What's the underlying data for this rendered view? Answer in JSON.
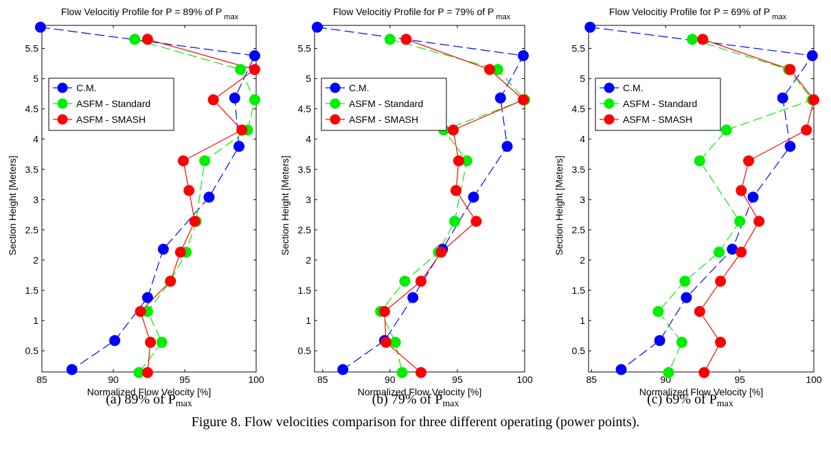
{
  "figure": {
    "caption": "Figure 8. Flow velocities comparison for three different operating (power points)."
  },
  "legend_entries": [
    "C.M.",
    "ASFM - Standard",
    "ASFM - SMASH"
  ],
  "series_colors": {
    "C.M.": "#0000ff",
    "ASFM - Standard": "#00ee00",
    "ASFM - SMASH": "#ff0000"
  },
  "chart_data": [
    {
      "type": "line",
      "title_prefix": "Flow Velocitiy Profile for P = 89% of P",
      "title_sub": "max",
      "subcaption_prefix": "(a) 89% of P",
      "subcaption_sub": "max",
      "xlabel": "Normalized Flow Velocity [%]",
      "ylabel": "Section Height [Meters]",
      "xlim": [
        85,
        100
      ],
      "ylim": [
        0.15,
        5.88
      ],
      "xticks": [
        "85",
        "90",
        "95",
        "100"
      ],
      "yticks": [
        "0.5",
        "1",
        "1.5",
        "2",
        "2.5",
        "3",
        "3.5",
        "4",
        "4.5",
        "5",
        "5.5"
      ],
      "legend_position": "upper-left",
      "series": [
        {
          "name": "C.M.",
          "points": [
            [
              84.9,
              5.85
            ],
            [
              99.9,
              5.38
            ],
            [
              98.5,
              4.68
            ],
            [
              98.8,
              3.88
            ],
            [
              96.7,
              3.04
            ],
            [
              93.5,
              2.18
            ],
            [
              92.4,
              1.38
            ],
            [
              90.1,
              0.67
            ],
            [
              87.1,
              0.19
            ]
          ]
        },
        {
          "name": "ASFM - Standard",
          "points": [
            [
              91.5,
              5.65
            ],
            [
              98.9,
              5.15
            ],
            [
              99.9,
              4.65
            ],
            [
              99.4,
              4.15
            ],
            [
              96.4,
              3.64
            ],
            [
              95.8,
              2.64
            ],
            [
              95.1,
              2.13
            ],
            [
              94.0,
              1.65
            ],
            [
              92.4,
              1.15
            ],
            [
              93.4,
              0.64
            ],
            [
              91.8,
              0.14
            ]
          ]
        },
        {
          "name": "ASFM - SMASH",
          "points": [
            [
              92.4,
              5.65
            ],
            [
              99.9,
              5.15
            ],
            [
              97.0,
              4.65
            ],
            [
              99.0,
              4.15
            ],
            [
              94.9,
              3.64
            ],
            [
              95.3,
              3.15
            ],
            [
              95.7,
              2.64
            ],
            [
              94.7,
              2.13
            ],
            [
              94.0,
              1.65
            ],
            [
              91.9,
              1.15
            ],
            [
              92.6,
              0.64
            ],
            [
              92.4,
              0.14
            ]
          ]
        }
      ]
    },
    {
      "type": "line",
      "title_prefix": "Flow Velocitiy Profile for P = 79% of P",
      "title_sub": "max",
      "subcaption_prefix": "(b) 79% of P",
      "subcaption_sub": "max",
      "xlabel": "Normalized Flow Velocity [%]",
      "ylabel": "Section Height [Meters]",
      "xlim": [
        84.4,
        100
      ],
      "ylim": [
        0.15,
        5.88
      ],
      "xticks": [
        "85",
        "90",
        "95",
        "100"
      ],
      "yticks": [
        "0.5",
        "1",
        "1.5",
        "2",
        "2.5",
        "3",
        "3.5",
        "4",
        "4.5",
        "5",
        "5.5"
      ],
      "legend_position": "upper-left",
      "series": [
        {
          "name": "C.M.",
          "points": [
            [
              84.6,
              5.85
            ],
            [
              99.9,
              5.38
            ],
            [
              98.2,
              4.68
            ],
            [
              98.7,
              3.88
            ],
            [
              96.2,
              3.04
            ],
            [
              93.9,
              2.18
            ],
            [
              91.7,
              1.38
            ],
            [
              89.6,
              0.67
            ],
            [
              86.5,
              0.19
            ]
          ]
        },
        {
          "name": "ASFM - Standard",
          "points": [
            [
              90.0,
              5.65
            ],
            [
              98.0,
              5.15
            ],
            [
              100.0,
              4.65
            ],
            [
              94.0,
              4.15
            ],
            [
              95.7,
              3.64
            ],
            [
              94.8,
              2.64
            ],
            [
              93.6,
              2.13
            ],
            [
              91.1,
              1.65
            ],
            [
              89.3,
              1.15
            ],
            [
              90.4,
              0.64
            ],
            [
              90.9,
              0.14
            ]
          ]
        },
        {
          "name": "ASFM - SMASH",
          "points": [
            [
              91.2,
              5.65
            ],
            [
              97.4,
              5.15
            ],
            [
              99.9,
              4.65
            ],
            [
              94.7,
              4.15
            ],
            [
              95.1,
              3.64
            ],
            [
              94.9,
              3.15
            ],
            [
              96.4,
              2.64
            ],
            [
              93.8,
              2.13
            ],
            [
              92.3,
              1.65
            ],
            [
              89.6,
              1.15
            ],
            [
              89.7,
              0.64
            ],
            [
              92.3,
              0.14
            ]
          ]
        }
      ]
    },
    {
      "type": "line",
      "title_prefix": "Flow Velocitiy Profile for P = 69% of P",
      "title_sub": "max",
      "subcaption_prefix": "(c) 69% of P",
      "subcaption_sub": "max",
      "xlabel": "Normalized Flow Velocity [%]",
      "ylabel": "Section Height [Meters]",
      "xlim": [
        84.8,
        100
      ],
      "ylim": [
        0.15,
        5.88
      ],
      "xticks": [
        "85",
        "90",
        "95",
        "100"
      ],
      "yticks": [
        "0.5",
        "1",
        "1.5",
        "2",
        "2.5",
        "3",
        "3.5",
        "4",
        "4.5",
        "5",
        "5.5"
      ],
      "legend_position": "upper-left",
      "series": [
        {
          "name": "C.M.",
          "points": [
            [
              84.9,
              5.85
            ],
            [
              99.9,
              5.38
            ],
            [
              97.9,
              4.68
            ],
            [
              98.4,
              3.88
            ],
            [
              95.9,
              3.04
            ],
            [
              94.5,
              2.18
            ],
            [
              91.4,
              1.38
            ],
            [
              89.6,
              0.67
            ],
            [
              87.0,
              0.19
            ]
          ]
        },
        {
          "name": "ASFM - Standard",
          "points": [
            [
              91.8,
              5.65
            ],
            [
              98.3,
              5.15
            ],
            [
              99.9,
              4.65
            ],
            [
              94.1,
              4.15
            ],
            [
              92.3,
              3.64
            ],
            [
              95.0,
              2.64
            ],
            [
              93.6,
              2.13
            ],
            [
              91.3,
              1.65
            ],
            [
              89.5,
              1.15
            ],
            [
              91.1,
              0.64
            ],
            [
              90.2,
              0.14
            ]
          ]
        },
        {
          "name": "ASFM - SMASH",
          "points": [
            [
              92.5,
              5.65
            ],
            [
              98.4,
              5.15
            ],
            [
              100.0,
              4.65
            ],
            [
              99.5,
              4.15
            ],
            [
              95.6,
              3.64
            ],
            [
              95.1,
              3.15
            ],
            [
              96.3,
              2.64
            ],
            [
              95.1,
              2.13
            ],
            [
              93.7,
              1.65
            ],
            [
              92.3,
              1.15
            ],
            [
              93.7,
              0.64
            ],
            [
              92.6,
              0.14
            ]
          ]
        }
      ]
    }
  ]
}
